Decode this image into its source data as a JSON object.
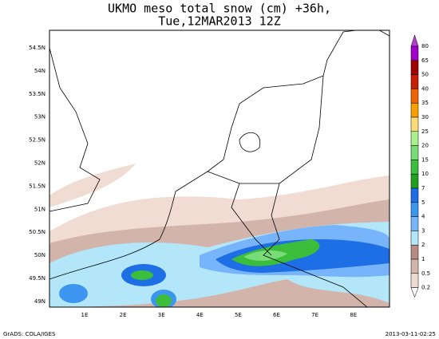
{
  "title": {
    "line1": "UKMO meso total snow (cm) +36h,",
    "line2": "Tue,12MAR2013 12Z"
  },
  "lat_labels": [
    "54.5N",
    "54N",
    "53.5N",
    "53N",
    "52.5N",
    "52N",
    "51.5N",
    "51N",
    "50.5N",
    "50N",
    "49.5N",
    "49N"
  ],
  "lon_labels": [
    "1E",
    "2E",
    "3E",
    "4E",
    "5E",
    "6E",
    "7E",
    "8E"
  ],
  "colorbar": {
    "labels": [
      "80",
      "65",
      "50",
      "40",
      "35",
      "30",
      "25",
      "20",
      "15",
      "10",
      "7",
      "5",
      "4",
      "3",
      "2",
      "1",
      "0.5",
      "0.2"
    ],
    "colors": [
      "#b43cd2",
      "#a000c8",
      "#a00000",
      "#c81e00",
      "#f06400",
      "#f5a000",
      "#fadc78",
      "#aaf08c",
      "#78dc78",
      "#3cbe3c",
      "#1ea01e",
      "#1e6ee6",
      "#3c96f0",
      "#78b4fa",
      "#b4e6fa",
      "#b48c82",
      "#d2b4aa",
      "#f0dcd2",
      "#ffffff"
    ]
  },
  "footer": {
    "left": "GrADS: COLA/IGES",
    "right": "2013-03-11-02:25"
  }
}
